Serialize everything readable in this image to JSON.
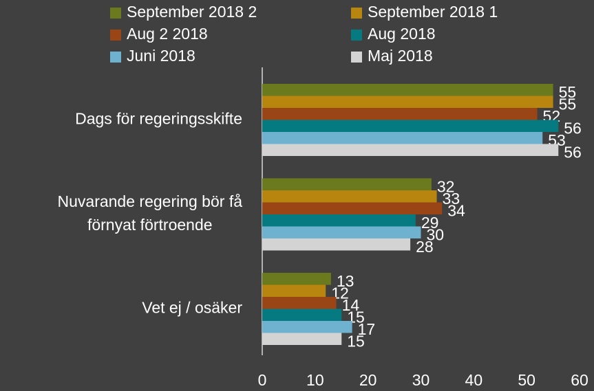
{
  "chart_data": {
    "type": "hbar",
    "categories": [
      [
        "Dags för regeringsskifte"
      ],
      [
        "Nuvarande regering bör få",
        "förnyat förtroende"
      ],
      [
        "Vet ej / osäker"
      ]
    ],
    "series": [
      {
        "name": "September 2018 2",
        "color": "#6b7a1c",
        "values": [
          55,
          32,
          13
        ]
      },
      {
        "name": "September 2018 1",
        "color": "#b8860f",
        "values": [
          55,
          33,
          12
        ]
      },
      {
        "name": "Aug 2 2018",
        "color": "#9a4516",
        "values": [
          52,
          34,
          14
        ]
      },
      {
        "name": "Aug 2018",
        "color": "#057a80",
        "values": [
          56,
          29,
          15
        ]
      },
      {
        "name": "Juni 2018",
        "color": "#6fb2cf",
        "values": [
          53,
          30,
          17
        ]
      },
      {
        "name": "Maj 2018",
        "color": "#d3d3d3",
        "values": [
          56,
          28,
          15
        ]
      }
    ],
    "xlim": [
      0,
      60
    ],
    "xticks": [
      0,
      10,
      20,
      30,
      40,
      50,
      60
    ],
    "legend": "top"
  }
}
